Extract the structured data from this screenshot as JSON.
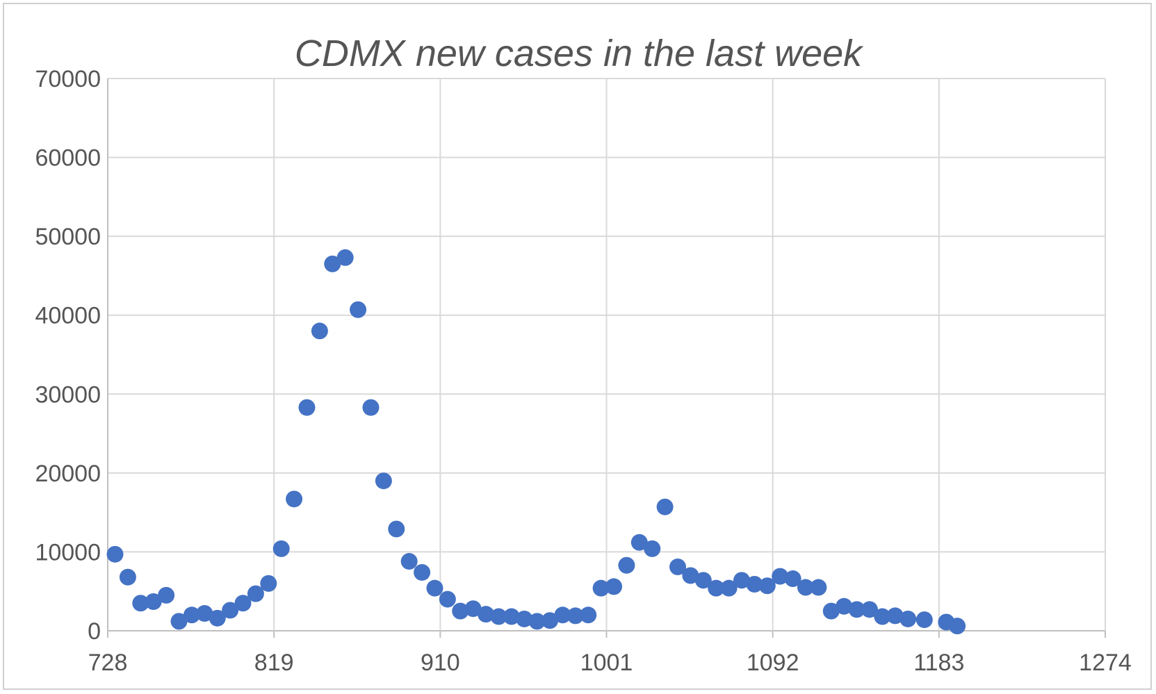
{
  "chart_data": {
    "type": "scatter",
    "title": "CDMX new cases in the last week",
    "xlabel": "",
    "ylabel": "",
    "xlim": [
      728,
      1274
    ],
    "ylim": [
      0,
      70000
    ],
    "x_ticks": [
      "728",
      "819",
      "910",
      "1001",
      "1092",
      "1183",
      "1274"
    ],
    "y_ticks": [
      "0",
      "10000",
      "20000",
      "30000",
      "40000",
      "50000",
      "60000",
      "70000"
    ],
    "grid": true,
    "legend": "none",
    "marker_color": "#4472c4",
    "points": [
      [
        732,
        9700
      ],
      [
        739,
        6800
      ],
      [
        746,
        3500
      ],
      [
        753,
        3700
      ],
      [
        760,
        4500
      ],
      [
        767,
        1200
      ],
      [
        774,
        2000
      ],
      [
        781,
        2200
      ],
      [
        788,
        1600
      ],
      [
        795,
        2600
      ],
      [
        802,
        3500
      ],
      [
        809,
        4700
      ],
      [
        816,
        6000
      ],
      [
        823,
        10400
      ],
      [
        830,
        16700
      ],
      [
        837,
        28300
      ],
      [
        844,
        38000
      ],
      [
        851,
        46500
      ],
      [
        858,
        47300
      ],
      [
        865,
        40700
      ],
      [
        872,
        28300
      ],
      [
        879,
        19000
      ],
      [
        886,
        12900
      ],
      [
        893,
        8800
      ],
      [
        900,
        7400
      ],
      [
        907,
        5400
      ],
      [
        914,
        4000
      ],
      [
        921,
        2500
      ],
      [
        928,
        2800
      ],
      [
        935,
        2100
      ],
      [
        942,
        1800
      ],
      [
        949,
        1800
      ],
      [
        956,
        1500
      ],
      [
        963,
        1200
      ],
      [
        970,
        1300
      ],
      [
        977,
        2000
      ],
      [
        984,
        1900
      ],
      [
        991,
        2000
      ],
      [
        998,
        5400
      ],
      [
        1005,
        5600
      ],
      [
        1012,
        8300
      ],
      [
        1019,
        11200
      ],
      [
        1026,
        10400
      ],
      [
        1033,
        15700
      ],
      [
        1040,
        8100
      ],
      [
        1047,
        7000
      ],
      [
        1054,
        6400
      ],
      [
        1061,
        5400
      ],
      [
        1068,
        5400
      ],
      [
        1075,
        6400
      ],
      [
        1082,
        5900
      ],
      [
        1089,
        5700
      ],
      [
        1096,
        6900
      ],
      [
        1103,
        6600
      ],
      [
        1110,
        5500
      ],
      [
        1117,
        5500
      ],
      [
        1124,
        2500
      ],
      [
        1131,
        3100
      ],
      [
        1138,
        2700
      ],
      [
        1145,
        2700
      ],
      [
        1152,
        1800
      ],
      [
        1159,
        1900
      ],
      [
        1166,
        1500
      ],
      [
        1175,
        1400
      ],
      [
        1187,
        1100
      ],
      [
        1193,
        600
      ]
    ]
  }
}
